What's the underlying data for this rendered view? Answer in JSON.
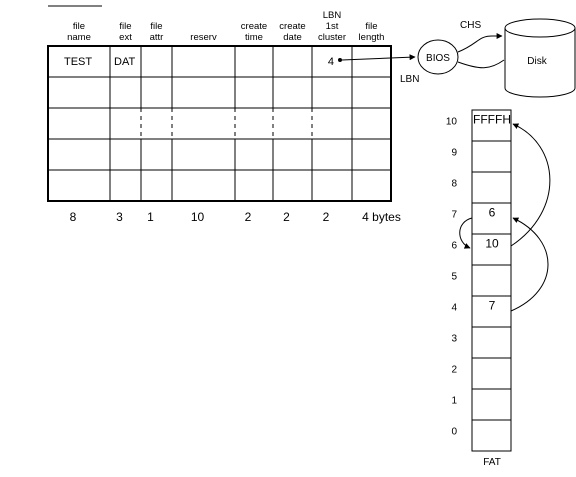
{
  "header_columns": [
    {
      "lines": [
        "file",
        "name"
      ]
    },
    {
      "lines": [
        "file",
        "ext"
      ]
    },
    {
      "lines": [
        "file",
        "attr"
      ]
    },
    {
      "lines": [
        "reserv"
      ]
    },
    {
      "lines": [
        "create",
        "time"
      ]
    },
    {
      "lines": [
        "create",
        "date"
      ]
    },
    {
      "lines": [
        "LBN",
        "1st",
        "cluster"
      ]
    },
    {
      "lines": [
        "file",
        "length"
      ]
    }
  ],
  "first_row": [
    "TEST",
    "DAT",
    "",
    "",
    "",
    "",
    "4",
    ""
  ],
  "byte_sizes": [
    "8",
    "3",
    "1",
    "10",
    "2",
    "2",
    "2",
    "4 bytes"
  ],
  "bios_label": "BIOS",
  "disk_label": "Disk",
  "lbn_label": "LBN",
  "chs_label": "CHS",
  "fat_label": "FAT",
  "fat_entries": [
    {
      "index": "10",
      "value": "FFFFH"
    },
    {
      "index": "9",
      "value": ""
    },
    {
      "index": "8",
      "value": ""
    },
    {
      "index": "7",
      "value": "6"
    },
    {
      "index": "6",
      "value": "10"
    },
    {
      "index": "5",
      "value": ""
    },
    {
      "index": "4",
      "value": "7"
    },
    {
      "index": "3",
      "value": ""
    },
    {
      "index": "2",
      "value": ""
    },
    {
      "index": "1",
      "value": ""
    },
    {
      "index": "0",
      "value": ""
    }
  ]
}
